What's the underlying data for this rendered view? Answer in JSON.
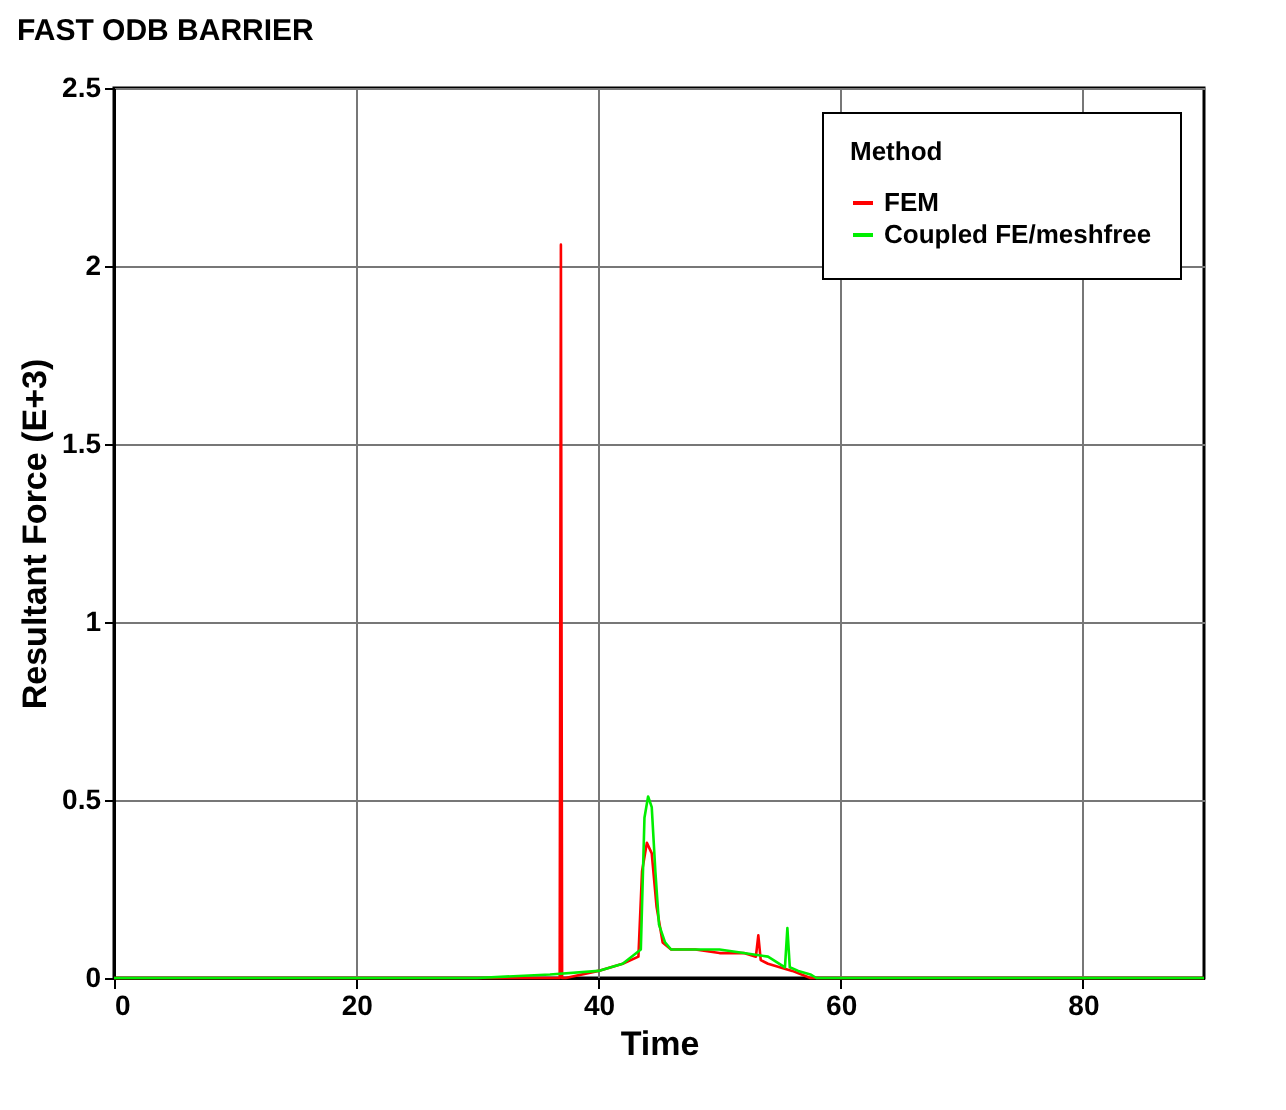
{
  "chart_data": {
    "type": "line",
    "title": "FAST ODB BARRIER",
    "xlabel": "Time",
    "ylabel": "Resultant Force (E+3)",
    "legend_title": "Method",
    "series": [
      {
        "name": "FEM",
        "color": "#ff0000",
        "x": [
          0,
          36.5,
          36.8,
          36.9,
          37.0,
          37.3,
          40,
          42,
          43.3,
          43.6,
          44.0,
          44.4,
          44.8,
          45.3,
          46,
          48,
          50,
          52,
          53.0,
          53.2,
          53.4,
          54,
          56,
          57.5,
          58,
          90
        ],
        "values": [
          0,
          0,
          0,
          2.06,
          0,
          0,
          0.02,
          0.04,
          0.06,
          0.3,
          0.38,
          0.35,
          0.2,
          0.1,
          0.08,
          0.08,
          0.07,
          0.07,
          0.06,
          0.12,
          0.05,
          0.04,
          0.02,
          0,
          0,
          0
        ]
      },
      {
        "name": "Coupled FE/meshfree",
        "color": "#00ee00",
        "x": [
          0,
          30,
          36,
          40,
          42,
          43.5,
          43.8,
          44.1,
          44.4,
          44.7,
          45.0,
          45.5,
          46,
          48,
          50,
          52,
          54,
          55.4,
          55.6,
          55.8,
          56.5,
          57.5,
          58,
          90
        ],
        "values": [
          0,
          0,
          0.01,
          0.02,
          0.04,
          0.08,
          0.45,
          0.51,
          0.48,
          0.3,
          0.15,
          0.1,
          0.08,
          0.08,
          0.08,
          0.07,
          0.06,
          0.03,
          0.14,
          0.03,
          0.02,
          0.01,
          0,
          0
        ]
      }
    ],
    "xlim": [
      0,
      90
    ],
    "xticks": [
      0,
      20,
      40,
      60,
      80
    ],
    "ylim": [
      0,
      2.5
    ],
    "yticks": [
      0,
      0.5,
      1,
      1.5,
      2,
      2.5
    ],
    "grid": true,
    "legend": "top right",
    "marker": "none",
    "line_style": "solid"
  }
}
